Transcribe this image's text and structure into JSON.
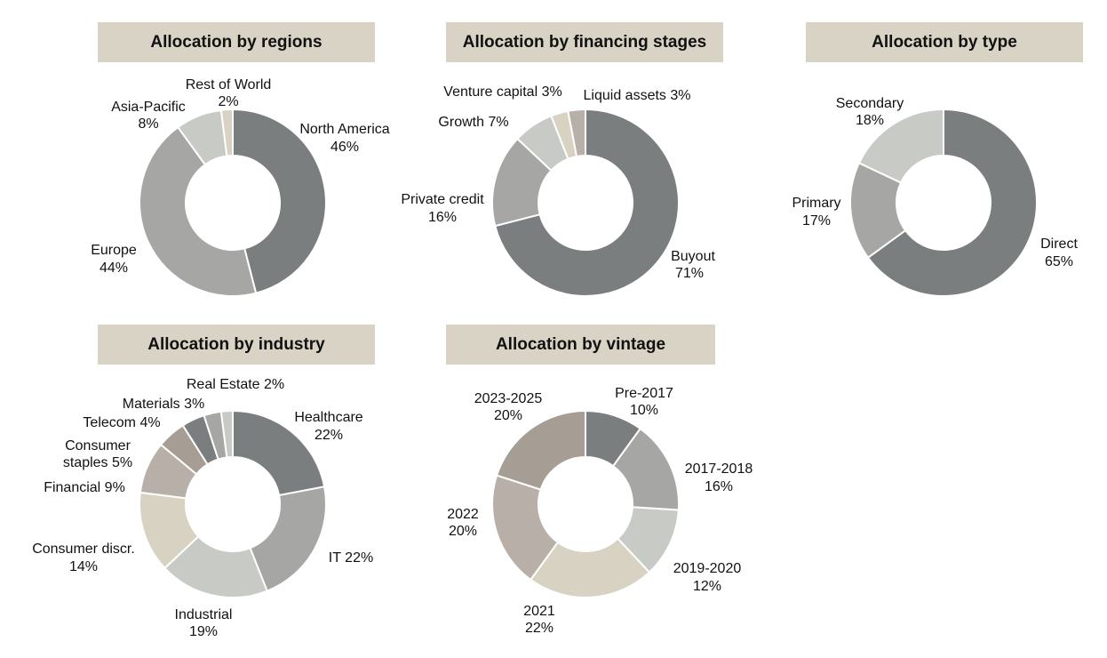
{
  "colors": {
    "title_bg": "#d9d3c5",
    "c1": "#7b7e7e",
    "c2": "#a6a6a5",
    "c3": "#c8cac5",
    "c4": "#d8d2c2",
    "c5": "#b8b0a8",
    "c6": "#a69e94"
  },
  "chart_data": [
    {
      "type": "pie",
      "title": "Allocation by regions",
      "slices": [
        {
          "label": "North America",
          "value": 46,
          "display": [
            "North America",
            "46%"
          ],
          "color": "#7b7e7e"
        },
        {
          "label": "Europe",
          "value": 44,
          "display": [
            "Europe",
            "44%"
          ],
          "color": "#a6a6a5"
        },
        {
          "label": "Asia-Pacific",
          "value": 8,
          "display": [
            "Asia-Pacific",
            "8%"
          ],
          "color": "#c8cac5"
        },
        {
          "label": "Rest of World",
          "value": 2,
          "display": [
            "Rest of World",
            "2%"
          ],
          "color": "#d8d2c2"
        }
      ]
    },
    {
      "type": "pie",
      "title": "Allocation by financing stages",
      "slices": [
        {
          "label": "Buyout",
          "value": 71,
          "display": [
            "Buyout",
            "71%"
          ],
          "color": "#7b7e7e"
        },
        {
          "label": "Private credit",
          "value": 16,
          "display": [
            "Private credit",
            "16%"
          ],
          "color": "#a6a6a5"
        },
        {
          "label": "Growth",
          "value": 7,
          "display": [
            "Growth 7%"
          ],
          "color": "#c8cac5"
        },
        {
          "label": "Venture capital",
          "value": 3,
          "display": [
            "Venture capital 3%"
          ],
          "color": "#d8d2c2"
        },
        {
          "label": "Liquid assets",
          "value": 3,
          "display": [
            "Liquid assets 3%"
          ],
          "color": "#b8b0a8"
        }
      ]
    },
    {
      "type": "pie",
      "title": "Allocation by type",
      "slices": [
        {
          "label": "Direct",
          "value": 65,
          "display": [
            "Direct",
            "65%"
          ],
          "color": "#7b7e7e"
        },
        {
          "label": "Primary",
          "value": 17,
          "display": [
            "Primary",
            "17%"
          ],
          "color": "#a6a6a5"
        },
        {
          "label": "Secondary",
          "value": 18,
          "display": [
            "Secondary",
            "18%"
          ],
          "color": "#c8cac5"
        }
      ]
    },
    {
      "type": "pie",
      "title": "Allocation by industry",
      "slices": [
        {
          "label": "Healthcare",
          "value": 22,
          "display": [
            "Healthcare",
            "22%"
          ],
          "color": "#7b7e7e"
        },
        {
          "label": "IT",
          "value": 22,
          "display": [
            "IT 22%"
          ],
          "color": "#a6a6a5"
        },
        {
          "label": "Industrial",
          "value": 19,
          "display": [
            "Industrial",
            "19%"
          ],
          "color": "#c8cac5"
        },
        {
          "label": "Consumer discr.",
          "value": 14,
          "display": [
            "Consumer discr.",
            "14%"
          ],
          "color": "#d8d2c2"
        },
        {
          "label": "Financial",
          "value": 9,
          "display": [
            "Financial 9%"
          ],
          "color": "#b8b0a8"
        },
        {
          "label": "Consumer staples",
          "value": 5,
          "display": [
            "Consumer",
            "staples 5%"
          ],
          "color": "#a69e94"
        },
        {
          "label": "Telecom",
          "value": 4,
          "display": [
            "Telecom 4%"
          ],
          "color": "#7b7e7e"
        },
        {
          "label": "Materials",
          "value": 3,
          "display": [
            "Materials 3%"
          ],
          "color": "#a6a6a5"
        },
        {
          "label": "Real Estate",
          "value": 2,
          "display": [
            "Real Estate 2%"
          ],
          "color": "#c8cac5"
        }
      ]
    },
    {
      "type": "pie",
      "title": "Allocation by vintage",
      "slices": [
        {
          "label": "Pre-2017",
          "value": 10,
          "display": [
            "Pre-2017",
            "10%"
          ],
          "color": "#7b7e7e"
        },
        {
          "label": "2017-2018",
          "value": 16,
          "display": [
            "2017-2018",
            "16%"
          ],
          "color": "#a6a6a5"
        },
        {
          "label": "2019-2020",
          "value": 12,
          "display": [
            "2019-2020",
            "12%"
          ],
          "color": "#c8cac5"
        },
        {
          "label": "2021",
          "value": 22,
          "display": [
            "2021",
            "22%"
          ],
          "color": "#d8d2c2"
        },
        {
          "label": "2022",
          "value": 20,
          "display": [
            "2022",
            "20%"
          ],
          "color": "#b8b0a8"
        },
        {
          "label": "2023-2025",
          "value": 20,
          "display": [
            "2023-2025",
            "20%"
          ],
          "color": "#a69e94"
        }
      ]
    }
  ]
}
